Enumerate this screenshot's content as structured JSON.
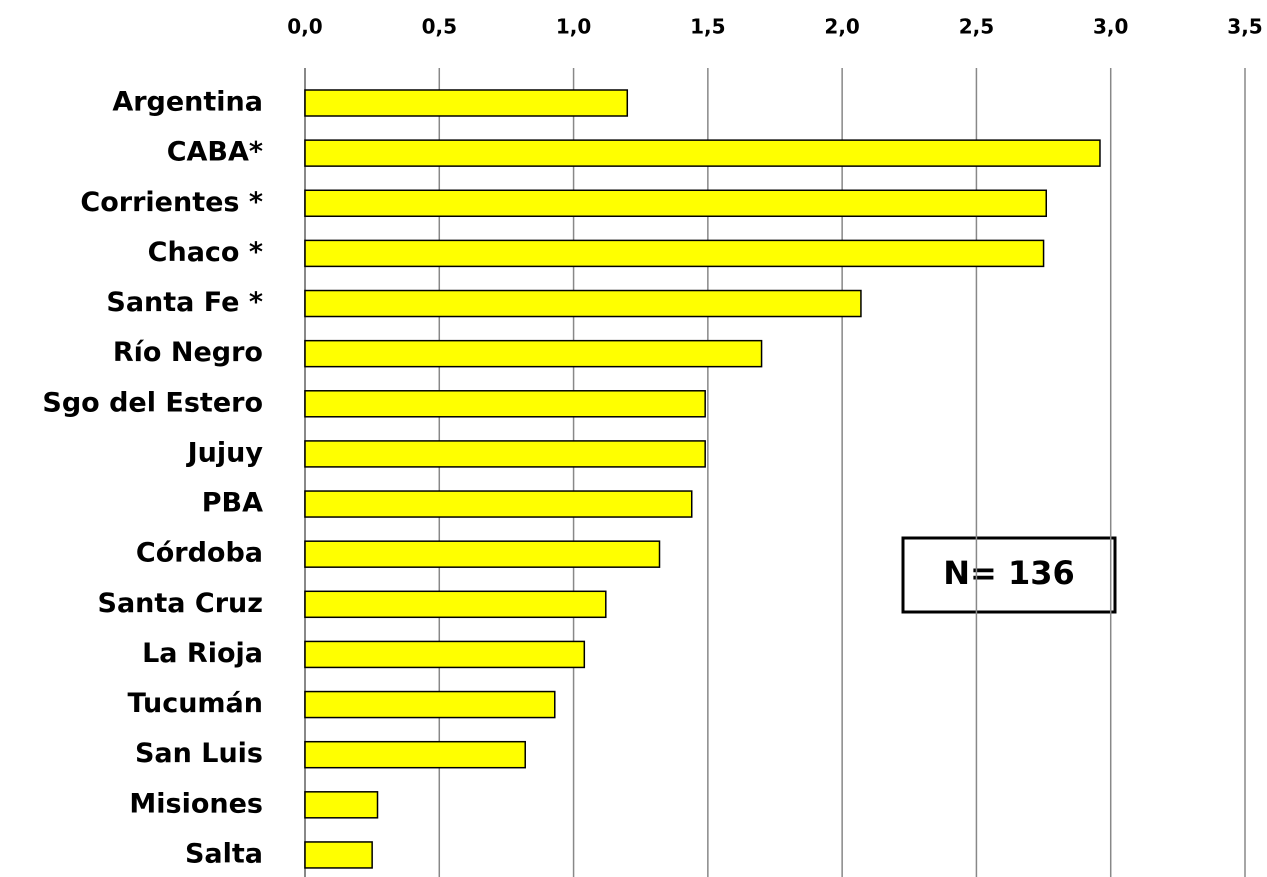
{
  "chart_data": {
    "type": "bar",
    "orientation": "horizontal",
    "categories": [
      "Argentina",
      "CABA*",
      "Corrientes *",
      "Chaco *",
      "Santa Fe *",
      "Río Negro",
      "Sgo del Estero",
      "Jujuy",
      "PBA",
      "Córdoba",
      "Santa Cruz",
      "La Rioja",
      "Tucumán",
      "San Luis",
      "Misiones",
      "Salta"
    ],
    "values": [
      1.2,
      2.96,
      2.76,
      2.75,
      2.07,
      1.7,
      1.49,
      1.49,
      1.44,
      1.32,
      1.12,
      1.04,
      0.93,
      0.82,
      0.27,
      0.25
    ],
    "color": "#ffff00",
    "xlim": [
      0,
      3.5
    ],
    "xticks": [
      {
        "value": 0,
        "label": "0,0"
      },
      {
        "value": 0.5,
        "label": "0,5"
      },
      {
        "value": 1,
        "label": "1,0"
      },
      {
        "value": 1.5,
        "label": "1,5"
      },
      {
        "value": 2,
        "label": "2,0"
      },
      {
        "value": 2.5,
        "label": "2,5"
      },
      {
        "value": 3,
        "label": "3,0"
      },
      {
        "value": 3.5,
        "label": "3,5"
      }
    ],
    "grid": true,
    "annotation": "N= 136"
  }
}
